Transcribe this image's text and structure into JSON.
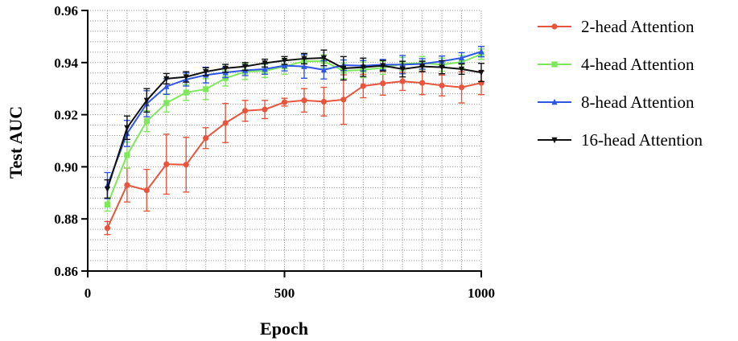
{
  "chart_data": {
    "type": "line",
    "xlabel": "Epoch",
    "ylabel": "Test AUC",
    "xlim": [
      0,
      1000
    ],
    "ylim": [
      0.86,
      0.96
    ],
    "xticks": [
      0,
      500,
      1000
    ],
    "xtick_labels": [
      "0",
      "500",
      "1000"
    ],
    "yticks": [
      0.86,
      0.88,
      0.9,
      0.92,
      0.94,
      0.96
    ],
    "ytick_labels": [
      "0.86",
      "0.88",
      "0.90",
      "0.92",
      "0.94",
      "0.96"
    ],
    "grid": true,
    "legend_position": "right",
    "x": [
      50,
      100,
      150,
      200,
      250,
      300,
      350,
      400,
      450,
      500,
      550,
      600,
      650,
      700,
      750,
      800,
      850,
      900,
      950,
      1000
    ],
    "series": [
      {
        "name": "2-head Attention",
        "color": "#e8553c",
        "marker": "circle",
        "values": [
          0.8765,
          0.893,
          0.891,
          0.901,
          0.9008,
          0.911,
          0.9168,
          0.9215,
          0.922,
          0.9248,
          0.9255,
          0.925,
          0.9258,
          0.931,
          0.932,
          0.9328,
          0.9322,
          0.9312,
          0.9305,
          0.9322
        ],
        "errors": [
          0.0025,
          0.0065,
          0.008,
          0.0115,
          0.0105,
          0.004,
          0.0075,
          0.004,
          0.0035,
          0.0015,
          0.0045,
          0.0055,
          0.0095,
          0.0045,
          0.0045,
          0.0035,
          0.0045,
          0.004,
          0.006,
          0.0045
        ]
      },
      {
        "name": "4-head Attention",
        "color": "#7ee85a",
        "marker": "square",
        "values": [
          0.8855,
          0.9045,
          0.9175,
          0.9245,
          0.9285,
          0.9298,
          0.934,
          0.9365,
          0.9368,
          0.9385,
          0.9405,
          0.9405,
          0.9368,
          0.9372,
          0.938,
          0.9395,
          0.9398,
          0.9392,
          0.9402,
          0.9432
        ],
        "errors": [
          0.0025,
          0.005,
          0.004,
          0.0035,
          0.003,
          0.004,
          0.003,
          0.003,
          0.0025,
          0.003,
          0.0025,
          0.0025,
          0.003,
          0.003,
          0.0025,
          0.0025,
          0.0025,
          0.0025,
          0.0025,
          0.002
        ]
      },
      {
        "name": "8-head Attention",
        "color": "#2f55e6",
        "marker": "triangle",
        "values": [
          0.8928,
          0.9128,
          0.9242,
          0.9308,
          0.9335,
          0.9352,
          0.9362,
          0.937,
          0.9375,
          0.9388,
          0.9385,
          0.9372,
          0.939,
          0.9388,
          0.9392,
          0.9392,
          0.9395,
          0.9405,
          0.9418,
          0.9442
        ],
        "errors": [
          0.005,
          0.005,
          0.005,
          0.003,
          0.0025,
          0.003,
          0.002,
          0.002,
          0.002,
          0.002,
          0.0045,
          0.0035,
          0.002,
          0.002,
          0.002,
          0.0035,
          0.002,
          0.002,
          0.002,
          0.002
        ]
      },
      {
        "name": "16-head Attention",
        "color": "#111111",
        "marker": "triangle-down",
        "values": [
          0.8915,
          0.915,
          0.9255,
          0.9338,
          0.9345,
          0.9365,
          0.9378,
          0.9385,
          0.9398,
          0.9408,
          0.9415,
          0.9418,
          0.9378,
          0.9382,
          0.9388,
          0.9375,
          0.9385,
          0.9382,
          0.9375,
          0.9362
        ],
        "errors": [
          0.0035,
          0.0045,
          0.0045,
          0.002,
          0.002,
          0.0015,
          0.0015,
          0.0015,
          0.0015,
          0.0015,
          0.002,
          0.003,
          0.0045,
          0.0035,
          0.002,
          0.003,
          0.002,
          0.0025,
          0.002,
          0.0035
        ]
      }
    ]
  }
}
